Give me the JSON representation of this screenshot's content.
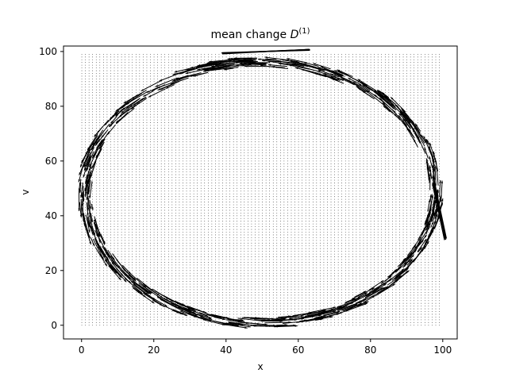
{
  "chart_data": {
    "type": "quiver",
    "title": {
      "prefix": "mean change ",
      "symbol": "D",
      "superscript": "(1)"
    },
    "xlabel": "x",
    "ylabel": "v",
    "xlim": [
      -5,
      104
    ],
    "ylim": [
      -5,
      102
    ],
    "xticks": [
      0,
      20,
      40,
      60,
      80,
      100
    ],
    "yticks": [
      0,
      20,
      40,
      60,
      80,
      100
    ],
    "grid": false,
    "legend": "none",
    "arrow_color": "#000000",
    "background_grid": {
      "description": "dense field of near-zero-length arrows on a regular lattice",
      "x_range": [
        0,
        99
      ],
      "y_range": [
        0,
        99
      ],
      "step": 1
    },
    "ring": {
      "description": "arrows tracing an elliptical band, tangential to the ring",
      "center": [
        49.5,
        48.5
      ],
      "radius_x": 48.5,
      "radius_y": 47.5,
      "band_width": 3.5
    },
    "outlier_streak": {
      "from": [
        39,
        99.3
      ],
      "to": [
        63,
        100.7
      ]
    },
    "right_tail": {
      "from": [
        97.5,
        52
      ],
      "to": [
        100.8,
        31.5
      ]
    }
  }
}
